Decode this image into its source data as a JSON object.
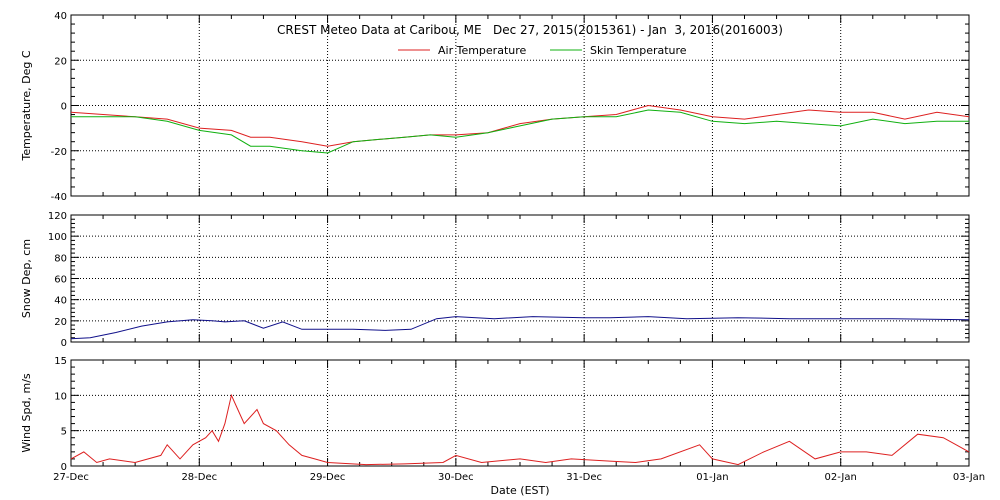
{
  "chart_data": {
    "type": "line",
    "title": "CREST Meteo Data at Caribou, ME   Dec 27, 2015(2015361) - Jan  3, 2016(2016003)",
    "xlabel": "Date (EST)",
    "x_ticks": [
      "27-Dec",
      "28-Dec",
      "29-Dec",
      "30-Dec",
      "31-Dec",
      "01-Jan",
      "02-Jan",
      "03-Jan"
    ],
    "x_range": [
      0,
      7
    ],
    "grid": true,
    "legend": "top-center",
    "panels": [
      {
        "ylabel": "Temperature, Deg C",
        "ylim": [
          -40,
          40
        ],
        "y_ticks": [
          "40",
          "20",
          "0",
          "-20",
          "-40"
        ],
        "series": [
          {
            "name": "Air Temperature",
            "color": "#dd2020",
            "x": [
              0,
              0.25,
              0.5,
              0.75,
              1.0,
              1.25,
              1.4,
              1.55,
              1.8,
              2.0,
              2.2,
              2.4,
              2.6,
              2.8,
              3.0,
              3.25,
              3.5,
              3.75,
              4.0,
              4.25,
              4.5,
              4.75,
              5.0,
              5.25,
              5.5,
              5.75,
              6.0,
              6.25,
              6.5,
              6.75,
              7.0
            ],
            "y": [
              -3,
              -4,
              -5,
              -6,
              -10,
              -11,
              -14,
              -14,
              -16,
              -18,
              -16,
              -15,
              -14,
              -13,
              -13,
              -12,
              -8,
              -6,
              -5,
              -4,
              0,
              -2,
              -5,
              -6,
              -4,
              -2,
              -3,
              -3,
              -6,
              -3,
              -5
            ]
          },
          {
            "name": "Skin Temperature",
            "color": "#10b010",
            "x": [
              0,
              0.25,
              0.5,
              0.75,
              1.0,
              1.25,
              1.4,
              1.55,
              1.8,
              2.0,
              2.2,
              2.4,
              2.6,
              2.8,
              3.0,
              3.25,
              3.5,
              3.75,
              4.0,
              4.25,
              4.5,
              4.75,
              5.0,
              5.25,
              5.5,
              5.75,
              6.0,
              6.25,
              6.5,
              6.75,
              7.0
            ],
            "y": [
              -5,
              -5,
              -5,
              -7,
              -11,
              -13,
              -18,
              -18,
              -20,
              -21,
              -16,
              -15,
              -14,
              -13,
              -14,
              -12,
              -9,
              -6,
              -5,
              -5,
              -2,
              -3,
              -7,
              -8,
              -7,
              -8,
              -9,
              -6,
              -8,
              -7,
              -7
            ]
          }
        ]
      },
      {
        "ylabel": "Snow Dep, cm",
        "ylim": [
          0,
          120
        ],
        "y_ticks": [
          "120",
          "100",
          "80",
          "60",
          "40",
          "20",
          "0"
        ],
        "series": [
          {
            "name": "",
            "color": "#10108a",
            "x": [
              0,
              0.15,
              0.35,
              0.55,
              0.75,
              0.95,
              1.1,
              1.2,
              1.35,
              1.5,
              1.65,
              1.8,
              2.0,
              2.2,
              2.45,
              2.65,
              2.85,
              3.0,
              3.3,
              3.6,
              4.0,
              4.2,
              4.5,
              4.8,
              5.2,
              5.6,
              6.0,
              6.4,
              7.0
            ],
            "y": [
              3,
              4,
              9,
              15,
              19,
              21,
              20,
              19,
              20,
              13,
              19,
              12,
              12,
              12,
              11,
              12,
              22,
              24,
              22,
              24,
              23,
              23,
              24,
              22,
              23,
              22,
              22,
              22,
              21
            ]
          }
        ]
      },
      {
        "ylabel": "Wind Spd, m/s",
        "ylim": [
          0,
          15
        ],
        "y_ticks": [
          "15",
          "10",
          "5",
          "0"
        ],
        "series": [
          {
            "name": "",
            "color": "#dd2020",
            "x": [
              0,
              0.1,
              0.2,
              0.3,
              0.5,
              0.7,
              0.75,
              0.85,
              0.95,
              1.05,
              1.1,
              1.15,
              1.2,
              1.25,
              1.3,
              1.35,
              1.45,
              1.5,
              1.6,
              1.7,
              1.8,
              1.9,
              2.0,
              2.3,
              2.6,
              2.9,
              3.0,
              3.2,
              3.5,
              3.7,
              3.9,
              4.2,
              4.4,
              4.6,
              4.9,
              5.0,
              5.2,
              5.4,
              5.6,
              5.8,
              6.0,
              6.2,
              6.4,
              6.6,
              6.8,
              6.9,
              7.0
            ],
            "y": [
              1,
              2,
              0.5,
              1,
              0.5,
              1.5,
              3,
              1,
              3,
              4,
              5,
              3.5,
              6,
              10,
              8,
              6,
              8,
              6,
              5,
              3,
              1.5,
              1,
              0.5,
              0.2,
              0.3,
              0.5,
              1.5,
              0.5,
              1,
              0.5,
              1,
              0.7,
              0.5,
              1,
              3,
              1,
              0.2,
              2,
              3.5,
              1,
              2,
              2,
              1.5,
              4.5,
              4,
              3,
              2
            ]
          }
        ]
      }
    ]
  }
}
